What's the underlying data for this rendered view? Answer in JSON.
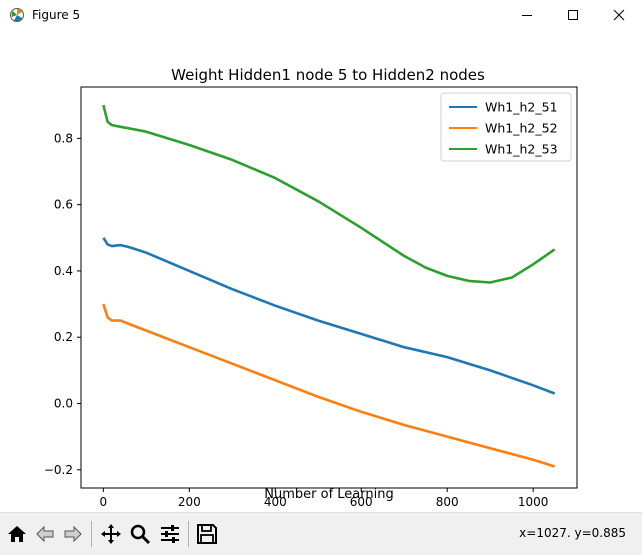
{
  "window": {
    "title": "Figure 5",
    "icon": "matplotlib-icon",
    "controls": [
      "minimize-icon",
      "maximize-icon",
      "close-icon"
    ]
  },
  "toolbar": {
    "buttons": [
      "home-icon",
      "back-arrow-icon",
      "forward-arrow-icon",
      "pan-icon",
      "zoom-icon",
      "configure-subplots-icon",
      "save-icon"
    ],
    "coords": "x=1027. y=0.885"
  },
  "chart_data": {
    "type": "line",
    "title": "Weight Hidden1 node 5 to Hidden2 nodes",
    "xlabel": "Number of Learning",
    "ylabel": "",
    "xlim": [
      -52,
      1102
    ],
    "ylim": [
      -0.255,
      0.955
    ],
    "xticks": [
      0,
      200,
      400,
      600,
      800,
      1000
    ],
    "xtick_labels": [
      "0",
      "200",
      "400",
      "600",
      "800",
      "1000"
    ],
    "yticks": [
      -0.2,
      0.0,
      0.2,
      0.4,
      0.6,
      0.8
    ],
    "ytick_labels": [
      "−0.2",
      "0.0",
      "0.2",
      "0.4",
      "0.6",
      "0.8"
    ],
    "grid": false,
    "legend_position": "upper right",
    "series": [
      {
        "name": "Wh1_h2_51",
        "color": "#1f77b4",
        "x": [
          0,
          10,
          20,
          40,
          60,
          100,
          200,
          300,
          400,
          500,
          600,
          700,
          800,
          900,
          1000,
          1050
        ],
        "y": [
          0.5,
          0.48,
          0.475,
          0.478,
          0.472,
          0.455,
          0.4,
          0.345,
          0.295,
          0.25,
          0.21,
          0.17,
          0.14,
          0.1,
          0.055,
          0.03
        ]
      },
      {
        "name": "Wh1_h2_52",
        "color": "#ff7f0e",
        "x": [
          0,
          10,
          20,
          40,
          60,
          100,
          200,
          300,
          400,
          500,
          600,
          700,
          800,
          900,
          1000,
          1050
        ],
        "y": [
          0.3,
          0.26,
          0.25,
          0.25,
          0.24,
          0.22,
          0.17,
          0.12,
          0.07,
          0.02,
          -0.025,
          -0.065,
          -0.1,
          -0.135,
          -0.17,
          -0.19
        ]
      },
      {
        "name": "Wh1_h2_53",
        "color": "#2ca02c",
        "x": [
          0,
          10,
          20,
          40,
          60,
          100,
          200,
          300,
          400,
          500,
          600,
          700,
          750,
          800,
          850,
          900,
          950,
          1000,
          1050
        ],
        "y": [
          0.9,
          0.85,
          0.84,
          0.835,
          0.83,
          0.82,
          0.78,
          0.735,
          0.68,
          0.61,
          0.53,
          0.445,
          0.41,
          0.385,
          0.37,
          0.365,
          0.38,
          0.42,
          0.465
        ]
      }
    ]
  }
}
